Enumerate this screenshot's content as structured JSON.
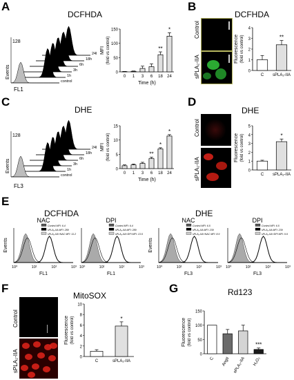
{
  "panels": {
    "A": {
      "letter": "A",
      "title": "DCFHDA",
      "hist_ylabel": "Events",
      "hist_xlabel": "FL1",
      "hist_ytick": "128",
      "hist_xticks": [
        "10⁰",
        "10¹",
        "10²",
        "10³"
      ],
      "hist_series": [
        "24h",
        "18h",
        "6h",
        "3h",
        "1h",
        "control"
      ],
      "bar_ylabel": "MFI",
      "bar_ylabel2": "(fold vs control)",
      "bar_xlabel": "Time (h)"
    },
    "B": {
      "letter": "B",
      "title": "DCFHDA",
      "img_labels": [
        "Control",
        "sPLA₂-IIA"
      ],
      "scale": "50 μ",
      "bar_ylabel": "Fluorescence",
      "bar_ylabel2": "(fold vs control)"
    },
    "C": {
      "letter": "C",
      "title": "DHE",
      "hist_ylabel": "Events",
      "hist_xlabel": "FL3",
      "hist_ytick": "128",
      "hist_xticks": [
        "10⁰",
        "10¹",
        "10²",
        "10³"
      ],
      "hist_series": [
        "24h",
        "18h",
        "6h",
        "3h",
        "1h",
        "control"
      ],
      "bar_ylabel": "MFI",
      "bar_ylabel2": "(fold vs control)",
      "bar_xlabel": "Time (h)"
    },
    "D": {
      "letter": "D",
      "title": "DHE",
      "img_labels": [
        "Control",
        "sPLA₂-IIA"
      ],
      "scale": "100 μ",
      "bar_ylabel": "Fluorescence",
      "bar_ylabel2": "(fold vs control)"
    },
    "E": {
      "letter": "E",
      "group1": "DCFHDA",
      "group2": "DHE",
      "subplots": [
        {
          "title": "NAC",
          "xlabel": "FL1",
          "legend": [
            "Control MFI: 6.4",
            "sPLA₂-IIA MFI: 289",
            "sPLA₂-IIA+NAC MFI: 11.2"
          ]
        },
        {
          "title": "DPI",
          "xlabel": "FL1",
          "legend": [
            "Control MFI: 6.4",
            "sPLA₂-IIA MFI: 289",
            "sPLA₂-IIA+DPI MFI: 13.5"
          ]
        },
        {
          "title": "NAC",
          "xlabel": "FL3",
          "legend": [
            "Control MFI: 6.5",
            "sPLA₂-IIA MFI: 239",
            "sPLA₂-IIA+NAC MFI: 8.9"
          ]
        },
        {
          "title": "DPI",
          "xlabel": "FL3",
          "legend": [
            "Control MFI: 6.5",
            "sPLA₂-IIA MFI: 239",
            "sPLA₂-IIA+DPI MFI: 9.9"
          ]
        }
      ],
      "ylabel": "Events",
      "xticks": [
        "10⁰",
        "10¹",
        "10²",
        "10³"
      ]
    },
    "F": {
      "letter": "F",
      "title": "MitoSOX",
      "img_labels": [
        "Control",
        "sPLA₂-IIA"
      ],
      "scale": "100 μ",
      "bar_ylabel": "Fluorescence",
      "bar_ylabel2": "(fold vs control)"
    },
    "G": {
      "letter": "G",
      "title": "Rd123",
      "bar_ylabel": "Fluorescence",
      "bar_ylabel2": "(fold vs control)"
    }
  },
  "colors": {
    "green": "#2fd03a",
    "red": "#e2231a",
    "bar_light": "#e0e0e0",
    "bar_dark": "#6b6b6b",
    "bar_black": "#1a1a1a"
  },
  "chart_data": [
    {
      "id": "A-bar",
      "type": "bar",
      "categories": [
        "0",
        "1",
        "3",
        "6",
        "18",
        "24"
      ],
      "values": [
        1,
        2,
        12,
        18,
        60,
        125
      ],
      "errors": [
        0.5,
        1,
        8,
        10,
        10,
        12
      ],
      "stars": [
        "",
        "",
        "",
        "",
        "**",
        "*"
      ],
      "ylim": [
        0,
        150
      ],
      "yticks": [
        0,
        50,
        100,
        150
      ],
      "xlabel": "Time (h)",
      "ylabel": "MFI"
    },
    {
      "id": "B-bar",
      "type": "bar",
      "categories": [
        "C",
        "sPLA₂-IIA"
      ],
      "values": [
        1,
        2.4
      ],
      "errors": [
        0.4,
        0.4
      ],
      "stars": [
        "",
        "**"
      ],
      "ylim": [
        0,
        4
      ],
      "yticks": [
        0,
        1,
        2,
        3,
        4
      ]
    },
    {
      "id": "C-bar",
      "type": "bar",
      "categories": [
        "0",
        "1",
        "3",
        "6",
        "18",
        "24"
      ],
      "values": [
        1,
        1.3,
        1.8,
        3.5,
        6.9,
        11.4
      ],
      "errors": [
        0.3,
        0.3,
        0.4,
        0.5,
        0.4,
        0.5
      ],
      "stars": [
        "",
        "",
        "",
        "**",
        "*",
        "*"
      ],
      "ylim": [
        0,
        15
      ],
      "yticks": [
        0,
        5,
        10,
        15
      ],
      "xlabel": "Time (h)",
      "ylabel": "MFI"
    },
    {
      "id": "D-bar",
      "type": "bar",
      "categories": [
        "C",
        "sPLA₂-IIA"
      ],
      "values": [
        1,
        3.2
      ],
      "errors": [
        0.1,
        0.3
      ],
      "stars": [
        "",
        "*"
      ],
      "ylim": [
        0,
        5
      ],
      "yticks": [
        0,
        1,
        2,
        3,
        4,
        5
      ]
    },
    {
      "id": "F-bar",
      "type": "bar",
      "categories": [
        "C",
        "sPLA₂-IIA"
      ],
      "values": [
        1,
        5.8
      ],
      "errors": [
        0.3,
        0.8
      ],
      "stars": [
        "",
        "*"
      ],
      "ylim": [
        0,
        10
      ],
      "yticks": [
        0,
        2,
        4,
        6,
        8,
        10
      ]
    },
    {
      "id": "G-bar",
      "type": "bar",
      "categories": [
        "C",
        "AngII",
        "sPLA₂-IIA",
        "H₂O₂"
      ],
      "values": [
        100,
        70,
        80,
        15
      ],
      "errors": [
        0,
        15,
        20,
        5
      ],
      "stars": [
        "",
        "",
        "",
        "***"
      ],
      "ylim": [
        0,
        150
      ],
      "yticks": [
        0,
        50,
        100,
        150
      ],
      "colors": [
        "#ffffff",
        "#6b6b6b",
        "#d4d4d4",
        "#1a1a1a"
      ]
    }
  ]
}
